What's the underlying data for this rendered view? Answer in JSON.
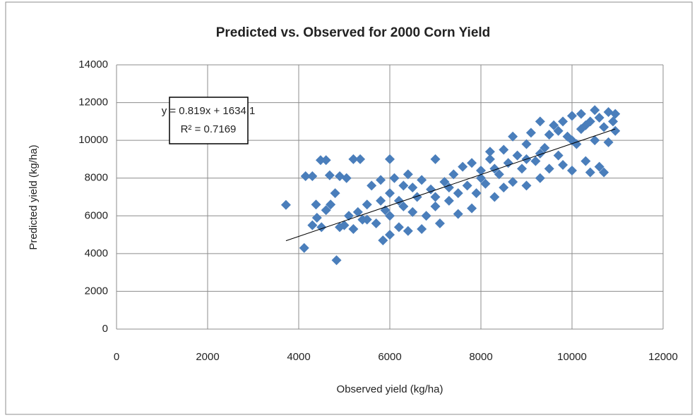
{
  "chart_data": {
    "type": "scatter",
    "title": "Predicted vs. Observed for 2000 Corn Yield",
    "xlabel": "Observed yield (kg/ha)",
    "ylabel": "Predicted yield (kg/ha)",
    "color": "#4a7ebb",
    "grid": true,
    "xlim": [
      0,
      12000
    ],
    "xticks": [
      0,
      2000,
      4000,
      6000,
      8000,
      10000,
      12000
    ],
    "ylim": [
      0,
      14000
    ],
    "yticks": [
      0,
      2000,
      4000,
      6000,
      8000,
      10000,
      12000,
      14000
    ],
    "x": [
      3720,
      4120,
      4150,
      4300,
      4380,
      4480,
      4600,
      4680,
      4830,
      4900,
      5050,
      5200,
      5350,
      6000,
      4300,
      4400,
      4500,
      4600,
      4700,
      4800,
      4900,
      5000,
      5100,
      5200,
      5300,
      5400,
      5500,
      5600,
      5700,
      5800,
      5850,
      5900,
      6000,
      6000,
      6100,
      6200,
      6200,
      6300,
      6400,
      6400,
      6500,
      6600,
      6700,
      6700,
      6800,
      6900,
      7000,
      7000,
      7100,
      7200,
      7300,
      7400,
      7500,
      7500,
      7600,
      7700,
      7800,
      7800,
      7900,
      8000,
      8100,
      8200,
      8200,
      8300,
      8400,
      8500,
      8500,
      8600,
      8700,
      8700,
      8800,
      8900,
      9000,
      9000,
      9100,
      9200,
      9300,
      9300,
      9400,
      9500,
      9500,
      9600,
      9700,
      9800,
      9800,
      9900,
      10000,
      10000,
      10100,
      10200,
      10200,
      10300,
      10400,
      10400,
      10500,
      10500,
      10600,
      10600,
      10700,
      10700,
      10800,
      10800,
      10900,
      10950,
      10950,
      6000,
      6500,
      7000,
      8000,
      5500,
      9000,
      10000,
      5800,
      6300,
      7300,
      8300,
      9300,
      9700,
      10300
    ],
    "y": [
      6580,
      4300,
      8100,
      8100,
      6600,
      8950,
      8950,
      8150,
      3650,
      8100,
      8000,
      9000,
      9000,
      9000,
      5500,
      5900,
      5400,
      6300,
      6600,
      7200,
      5400,
      5500,
      6000,
      5300,
      6200,
      5800,
      6600,
      7600,
      5600,
      7900,
      4700,
      6300,
      5000,
      7200,
      8000,
      5400,
      6800,
      7600,
      5200,
      8200,
      6200,
      7000,
      5300,
      7900,
      6000,
      7400,
      9000,
      6500,
      5600,
      7800,
      6800,
      8200,
      7200,
      6100,
      8600,
      7600,
      6400,
      8800,
      7200,
      8400,
      7700,
      9000,
      9400,
      7000,
      8200,
      9500,
      7500,
      8800,
      10200,
      7800,
      9200,
      8500,
      9800,
      7600,
      10400,
      8900,
      11000,
      8000,
      9600,
      10300,
      8500,
      10800,
      9200,
      11000,
      8700,
      10200,
      11300,
      8400,
      9800,
      11400,
      10600,
      8900,
      11000,
      8300,
      11600,
      10000,
      8600,
      11200,
      10700,
      8300,
      11500,
      9900,
      11000,
      10500,
      11400,
      6000,
      7500,
      7000,
      8000,
      5800,
      9000,
      10000,
      6800,
      6500,
      7500,
      8500,
      9300,
      10500,
      10800
    ],
    "trendline": {
      "x": [
        3720,
        10950
      ],
      "y": [
        4680.8,
        10602.1
      ],
      "equation": "y = 0.819x + 1634.1",
      "r2": "R² = 0.7169"
    }
  }
}
